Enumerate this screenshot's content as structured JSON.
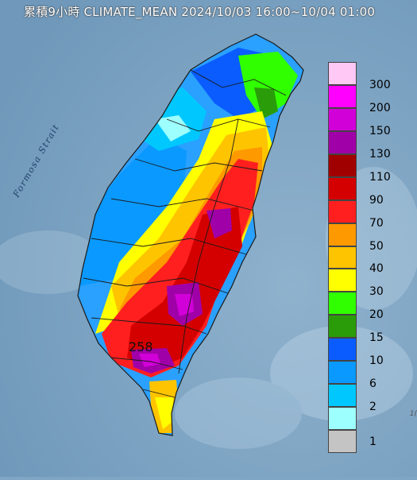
{
  "title": "累積9小時 CLIMATE_MEAN 2024/10/03 16:00~10/04 01:00",
  "strait_label": "Formosa Strait",
  "max_rainfall_label": "258",
  "corner_label": "1(",
  "colors": {
    "sea": "#7fa6c4",
    "sea_dark": "#6a94b6"
  },
  "legend": [
    {
      "label": "300",
      "color": "#ffc8f5"
    },
    {
      "label": "200",
      "color": "#ff00ff"
    },
    {
      "label": "150",
      "color": "#d100d8"
    },
    {
      "label": "130",
      "color": "#a000a8"
    },
    {
      "label": "110",
      "color": "#a10000"
    },
    {
      "label": "90",
      "color": "#d40000"
    },
    {
      "label": "70",
      "color": "#ff1f1f"
    },
    {
      "label": "50",
      "color": "#ff9900"
    },
    {
      "label": "40",
      "color": "#ffc400"
    },
    {
      "label": "30",
      "color": "#ffff00"
    },
    {
      "label": "20",
      "color": "#30ff00"
    },
    {
      "label": "15",
      "color": "#2a9c0a"
    },
    {
      "label": "10",
      "color": "#0a5cff"
    },
    {
      "label": "6",
      "color": "#0a99ff"
    },
    {
      "label": "2",
      "color": "#00c8ff"
    },
    {
      "label": "",
      "color": "#9effff"
    },
    {
      "label": "1",
      "color": "#c4c4c4"
    }
  ]
}
